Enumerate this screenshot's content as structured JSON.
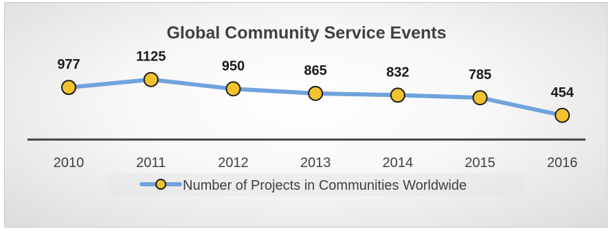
{
  "chart_data": {
    "type": "line",
    "title": "Global Community Service Events",
    "categories": [
      "2010",
      "2011",
      "2012",
      "2013",
      "2014",
      "2015",
      "2016"
    ],
    "series": [
      {
        "name": "Number of Projects in Communities Worldwide",
        "values": [
          977,
          1125,
          950,
          865,
          832,
          785,
          454
        ],
        "line_color": "#6fa3dc",
        "marker_fill": "#f2c230",
        "marker_stroke": "#1a1a1a"
      }
    ],
    "data_labels": [
      "977",
      "1125",
      "950",
      "865",
      "832",
      "785",
      "454"
    ],
    "xlabel": "",
    "ylabel": "",
    "ylim": [
      0,
      1300
    ],
    "grid": false,
    "legend_position": "bottom"
  }
}
